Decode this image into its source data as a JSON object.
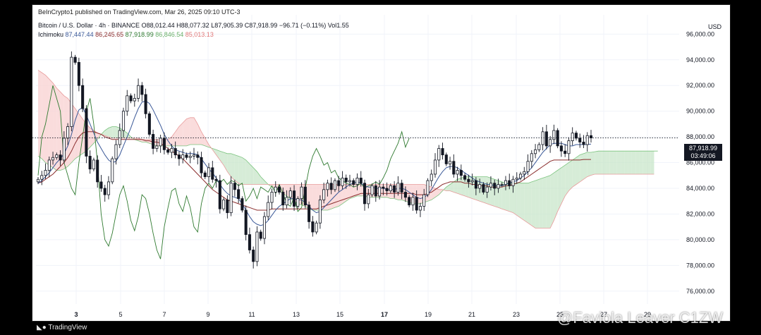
{
  "header": {
    "publisher": "BeInCrypto1 published on TradingView.com, Mar 26, 2025 09:10 UTC-3",
    "symbol": "Bitcoin / U.S. Dollar · 4h · BINANCE",
    "open": "O88,012.44",
    "high": "H88,077.32",
    "low": "L87,905.39",
    "close": "C87,918.99",
    "change": "−96.71 (−0.11%)",
    "volume": "Vol1.55",
    "indicator_name": "Ichimoku",
    "ichimoku_values": [
      "87,447.44",
      "86,245.65",
      "87,918.99",
      "86,846.54",
      "85,013.13"
    ],
    "currency": "USD"
  },
  "price_tag": {
    "price": "87,918.99",
    "countdown": "03:49:06"
  },
  "footer": {
    "logo": "TradingView"
  },
  "watermark": {
    "text": "@Faviola Leaver C1ZW"
  },
  "colors": {
    "tenkan": "#3b5998",
    "kijun": "#8b2e2e",
    "chikou": "#2f7a2f",
    "cloud_bull": "#c8e6c9",
    "cloud_bear": "#f8d0d0",
    "candle": "#131722"
  },
  "chart_data": {
    "type": "candlestick",
    "y_ticks": [
      "96,000.00",
      "94,000.00",
      "92,000.00",
      "90,000.00",
      "88,000.00",
      "86,000.00",
      "84,000.00",
      "82,000.00",
      "80,000.00",
      "78,000.00",
      "76,000.00"
    ],
    "x_ticks": [
      "3",
      "5",
      "7",
      "9",
      "11",
      "13",
      "15",
      "17",
      "19",
      "21",
      "23",
      "25",
      "27",
      "29"
    ],
    "ylim": [
      75000,
      97500
    ],
    "last_price": 87918.99,
    "closes": [
      84700,
      85000,
      85400,
      86200,
      86400,
      86600,
      86200,
      87900,
      88800,
      94200,
      93800,
      92000,
      90200,
      86500,
      85500,
      86200,
      84500,
      84000,
      83500,
      84500,
      86300,
      87400,
      88500,
      90000,
      91200,
      90800,
      91000,
      92000,
      91300,
      89800,
      88200,
      87100,
      87300,
      87900,
      87000,
      86800,
      87100,
      86600,
      86300,
      86600,
      86400,
      86500,
      86600,
      86400,
      85200,
      84900,
      85600,
      84700,
      84600,
      82400,
      83100,
      82100,
      84400,
      83900,
      83200,
      82300,
      80400,
      79200,
      78300,
      80600,
      80100,
      81800,
      82900,
      83700,
      84100,
      83700,
      82700,
      83300,
      83800,
      82600,
      83200,
      84100,
      82700,
      81400,
      80600,
      81300,
      83100,
      83900,
      84400,
      83900,
      84600,
      84200,
      84800,
      84500,
      84600,
      84300,
      84800,
      84400,
      82800,
      83500,
      84200,
      83400,
      84100,
      84000,
      83800,
      84200,
      83700,
      84400,
      83700,
      83300,
      82700,
      83300,
      82300,
      82600,
      83500,
      84600,
      85100,
      86200,
      87100,
      86600,
      85900,
      86100,
      85100,
      85400,
      85000,
      84700,
      84500,
      84600,
      84000,
      84300,
      83700,
      84100,
      84400,
      84000,
      84300,
      84300,
      84600,
      84200,
      84700,
      84800,
      85100,
      85300,
      86100,
      86700,
      87000,
      87400,
      88400,
      87300,
      87800,
      88500,
      87300,
      86900,
      86700,
      87700,
      88300,
      87900,
      87600,
      87400,
      88100,
      87918.99
    ],
    "tenkan": [
      84400,
      84600,
      84900,
      85200,
      85600,
      86000,
      86300,
      86700,
      87300,
      88200,
      89300,
      90100,
      90300,
      89700,
      89000,
      88300,
      87600,
      87100,
      86600,
      86200,
      86000,
      86100,
      86600,
      87300,
      88000,
      88700,
      89500,
      90200,
      90700,
      90800,
      90600,
      90100,
      89500,
      88900,
      88200,
      87700,
      87300,
      87000,
      86900,
      86800,
      86700,
      86700,
      86700,
      86600,
      86300,
      85900,
      85500,
      85200,
      84800,
      84300,
      83900,
      83600,
      83400,
      83300,
      83200,
      82800,
      82300,
      81800,
      81400,
      81200,
      81100,
      81200,
      81500,
      81900,
      82300,
      82600,
      82800,
      83000,
      83200,
      83200,
      83100,
      83100,
      82900,
      82600,
      82300,
      82100,
      82200,
      82500,
      82800,
      83100,
      83400,
      83700,
      83900,
      84100,
      84300,
      84400,
      84500,
      84400,
      84200,
      84100,
      84100,
      84000,
      84000,
      84000,
      83900,
      83900,
      83900,
      84000,
      84000,
      83900,
      83700,
      83500,
      83300,
      83200,
      83300,
      83500,
      83900,
      84400,
      84900,
      85300,
      85600,
      85700,
      85700,
      85600,
      85400,
      85200,
      85000,
      84800,
      84600,
      84500,
      84400,
      84300,
      84300,
      84200,
      84200,
      84200,
      84300,
      84400,
      84500,
      84600,
      84800,
      85000,
      85300,
      85600,
      86000,
      86400,
      86800,
      87100,
      87400,
      87500,
      87500,
      87500,
      87400,
      87300,
      87300,
      87400,
      87400,
      87400,
      87400,
      87447.44
    ],
    "kijun": [
      84400,
      84500,
      84700,
      84900,
      85100,
      85400,
      85700,
      86000,
      86400,
      86900,
      87500,
      88000,
      88300,
      88400,
      88400,
      88400,
      88300,
      88200,
      88000,
      87900,
      87800,
      87800,
      87800,
      87800,
      87800,
      87800,
      87800,
      87800,
      87800,
      87700,
      87700,
      87600,
      87600,
      87500,
      87300,
      87100,
      86900,
      86700,
      86500,
      86300,
      86000,
      85700,
      85400,
      85100,
      84800,
      84500,
      84200,
      83900,
      83700,
      83500,
      83300,
      83100,
      83000,
      82900,
      82800,
      82700,
      82600,
      82500,
      82400,
      82300,
      82300,
      82300,
      82300,
      82400,
      82400,
      82400,
      82400,
      82400,
      82400,
      82400,
      82400,
      82400,
      82400,
      82400,
      82400,
      82400,
      82500,
      82600,
      82700,
      82800,
      82900,
      83000,
      83100,
      83200,
      83300,
      83400,
      83500,
      83600,
      83600,
      83600,
      83600,
      83600,
      83600,
      83600,
      83600,
      83600,
      83600,
      83600,
      83600,
      83600,
      83600,
      83600,
      83500,
      83500,
      83500,
      83600,
      83700,
      83900,
      84100,
      84300,
      84400,
      84500,
      84500,
      84500,
      84500,
      84400,
      84400,
      84300,
      84300,
      84200,
      84200,
      84200,
      84100,
      84100,
      84100,
      84100,
      84200,
      84200,
      84300,
      84400,
      84500,
      84700,
      84900,
      85100,
      85300,
      85500,
      85700,
      85900,
      86100,
      86200,
      86200,
      86200,
      86200,
      86200,
      86200,
      86200,
      86200,
      86245.65,
      86245.65,
      86245.65
    ],
    "chikou": [
      85000,
      88000,
      89000,
      90500,
      92000,
      91000,
      90000,
      86000,
      85000,
      84000,
      83500,
      86000,
      88000,
      90000,
      91000,
      89000,
      86000,
      82000,
      80000,
      79500,
      80500,
      82000,
      83500,
      84200,
      83000,
      81500,
      80700,
      81800,
      83500,
      83200,
      82000,
      80500,
      79200,
      78500,
      81000,
      82500,
      83800,
      84000,
      82800,
      82200,
      83400,
      82500,
      81000,
      80600,
      82800,
      84000,
      84400,
      84000,
      84600,
      84400,
      84700,
      84300,
      84600,
      84500,
      84200,
      84400,
      83000,
      83400,
      84000,
      83200,
      84100,
      83900,
      83700,
      84200,
      83600,
      84300,
      83600,
      82800,
      82600,
      83300,
      82200,
      82500,
      84000,
      85500,
      86500,
      87100,
      86500,
      85800,
      86000,
      85200,
      85400,
      84800,
      84600,
      84400,
      84300,
      84100,
      84200,
      84400,
      84000,
      84200,
      84300,
      84500,
      84300,
      84800,
      85400,
      86300,
      86900,
      87500,
      88400,
      87200,
      87900
    ],
    "spanA": [
      86500,
      86300,
      86000,
      85800,
      85600,
      85400,
      85400,
      85500,
      85700,
      86000,
      86300,
      86500,
      86700,
      86900,
      87200,
      87500,
      87800,
      88200,
      88500,
      88700,
      88800,
      88800,
      88700,
      88500,
      88300,
      88000,
      87800,
      87700,
      87600,
      87600,
      87500,
      87400,
      87300,
      87300,
      87300,
      87300,
      87300,
      87300,
      87300,
      87300,
      87300,
      87400,
      87400,
      87400,
      87400,
      87300,
      87200,
      87100,
      87000,
      86900,
      86800,
      86700,
      86700,
      86600,
      86500,
      86400,
      86200,
      85900,
      85600,
      85300,
      84900,
      84600,
      84300,
      84100,
      84000,
      83800,
      83600,
      83400,
      83200,
      83000,
      82800,
      82700,
      82600,
      82400,
      82300,
      82300,
      82300,
      82300,
      82300,
      82400,
      82500,
      82600,
      82800,
      83000,
      83200,
      83300,
      83400,
      83400,
      83400,
      83300,
      83300,
      83300,
      83300,
      83300,
      83300,
      83200,
      83200,
      83100,
      83100,
      83000,
      82900,
      82800,
      82800,
      82800,
      82900,
      83000,
      83100,
      83300,
      83500,
      83800,
      84100,
      84300,
      84500,
      84700,
      84800,
      84900,
      84900,
      84900,
      84900,
      84900,
      84900,
      84900,
      84800,
      84700,
      84600,
      84500,
      84400,
      84400,
      84400,
      84400,
      84400,
      84400,
      84400,
      84500,
      84600,
      84700,
      84800,
      84900,
      85000,
      85200,
      85400,
      85600,
      85800,
      86000,
      86200,
      86400,
      86600,
      86700,
      86800,
      86800,
      86846.54,
      86900,
      86900,
      86900,
      86900,
      86900,
      86900,
      86900,
      86900,
      86900,
      86900,
      86900,
      86900,
      86900,
      86900,
      86900,
      86900,
      86900
    ],
    "spanB": [
      93200,
      93000,
      92800,
      92500,
      92200,
      91800,
      91500,
      91200,
      91000,
      90600,
      90200,
      89800,
      89400,
      89000,
      88700,
      88500,
      88300,
      88200,
      88100,
      88000,
      87900,
      87900,
      87900,
      87900,
      87900,
      87900,
      87900,
      87900,
      87800,
      87800,
      87800,
      87800,
      87800,
      87800,
      87800,
      87800,
      88000,
      88400,
      88800,
      89100,
      89400,
      89500,
      89500,
      89000,
      88400,
      87900,
      87400,
      87000,
      86600,
      86200,
      85800,
      85300,
      84900,
      84600,
      84400,
      84300,
      84300,
      84300,
      84300,
      84300,
      84300,
      84300,
      84300,
      84300,
      84300,
      84300,
      84300,
      84300,
      84300,
      84300,
      84300,
      84300,
      84300,
      84300,
      84300,
      84300,
      84300,
      84300,
      84300,
      84300,
      84300,
      84300,
      84300,
      84300,
      84300,
      84300,
      84300,
      84300,
      84300,
      84300,
      84300,
      84300,
      84300,
      84300,
      84300,
      84300,
      84300,
      84300,
      84300,
      84300,
      84300,
      84300,
      84300,
      84300,
      84300,
      84200,
      84100,
      84000,
      83900,
      83900,
      83800,
      83800,
      83700,
      83600,
      83500,
      83400,
      83300,
      83200,
      83100,
      83000,
      82900,
      82800,
      82700,
      82600,
      82500,
      82400,
      82300,
      82200,
      82100,
      81900,
      81700,
      81500,
      81300,
      81100,
      80900,
      80900,
      80900,
      80900,
      80900,
      81500,
      82200,
      82800,
      83400,
      83800,
      84100,
      84300,
      84500,
      84700,
      84900,
      85013.13,
      85100,
      85100,
      85100,
      85100,
      85100,
      85100,
      85100,
      85100,
      85100,
      85100,
      85100,
      85100,
      85100,
      85100,
      85100,
      85100,
      85100
    ]
  }
}
